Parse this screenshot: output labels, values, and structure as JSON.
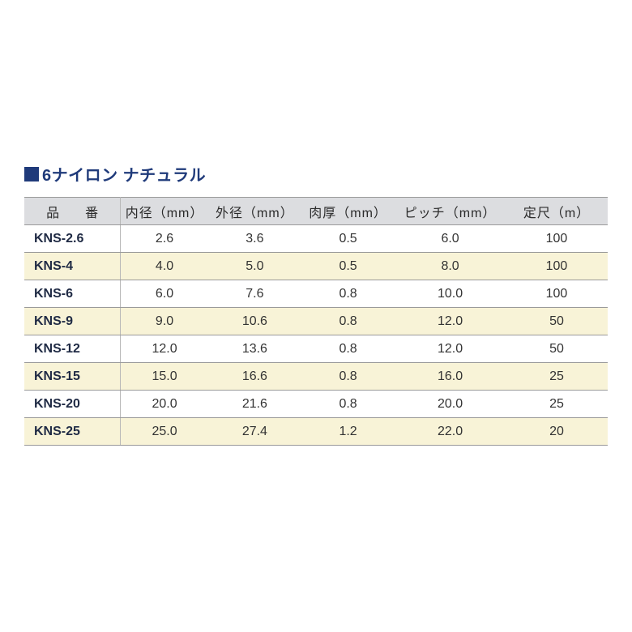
{
  "title": "6ナイロン ナチュラル",
  "colors": {
    "title": "#1f3a7a",
    "header_bg": "#dcdde0",
    "alt_row_bg": "#f8f3d7",
    "border": "#9a9a9a",
    "code_text": "#1f2a44",
    "cell_text": "#333333",
    "page_bg": "#ffffff"
  },
  "typography": {
    "title_fontsize_pt": 15,
    "cell_fontsize_pt": 12,
    "font_family": "Hiragino Kaku Gothic ProN"
  },
  "table": {
    "columns": [
      {
        "key": "code",
        "label": "品　番",
        "width_pct": 16.5,
        "align": "left"
      },
      {
        "key": "id",
        "label": "内径（mm）",
        "width_pct": 15,
        "align": "center"
      },
      {
        "key": "od",
        "label": "外径（mm）",
        "width_pct": 16,
        "align": "center"
      },
      {
        "key": "th",
        "label": "肉厚（mm）",
        "width_pct": 16,
        "align": "center"
      },
      {
        "key": "pitch",
        "label": "ピッチ（mm）",
        "width_pct": 19,
        "align": "center"
      },
      {
        "key": "len",
        "label": "定尺（m）",
        "width_pct": 17.5,
        "align": "center"
      }
    ],
    "rows": [
      {
        "code": "KNS-2.6",
        "id": "2.6",
        "od": "3.6",
        "th": "0.5",
        "pitch": "6.0",
        "len": "100"
      },
      {
        "code": "KNS-4",
        "id": "4.0",
        "od": "5.0",
        "th": "0.5",
        "pitch": "8.0",
        "len": "100"
      },
      {
        "code": "KNS-6",
        "id": "6.0",
        "od": "7.6",
        "th": "0.8",
        "pitch": "10.0",
        "len": "100"
      },
      {
        "code": "KNS-9",
        "id": "9.0",
        "od": "10.6",
        "th": "0.8",
        "pitch": "12.0",
        "len": "50"
      },
      {
        "code": "KNS-12",
        "id": "12.0",
        "od": "13.6",
        "th": "0.8",
        "pitch": "12.0",
        "len": "50"
      },
      {
        "code": "KNS-15",
        "id": "15.0",
        "od": "16.6",
        "th": "0.8",
        "pitch": "16.0",
        "len": "25"
      },
      {
        "code": "KNS-20",
        "id": "20.0",
        "od": "21.6",
        "th": "0.8",
        "pitch": "20.0",
        "len": "25"
      },
      {
        "code": "KNS-25",
        "id": "25.0",
        "od": "27.4",
        "th": "1.2",
        "pitch": "22.0",
        "len": "20"
      }
    ]
  }
}
